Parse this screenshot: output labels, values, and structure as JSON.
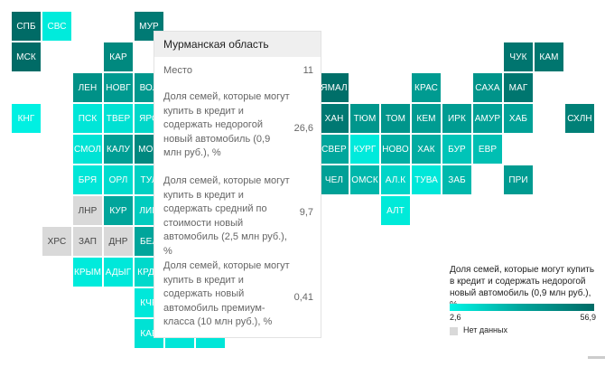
{
  "colors": {
    "scale": [
      "#00f5e6",
      "#00a39a",
      "#006b66"
    ],
    "no_data": "#d9d9d9"
  },
  "regions": [
    {
      "code": "СПБ",
      "value": null,
      "c": "#006b66"
    },
    {
      "code": "СВС",
      "value": null,
      "c": "#00ebdc"
    },
    {
      "code": "МУР",
      "value": 26.6,
      "c": "#007a74"
    },
    {
      "code": "МСК",
      "value": null,
      "c": "#006b66"
    },
    {
      "code": "КАР",
      "value": null,
      "c": "#00897f"
    },
    {
      "code": "ЧУК",
      "value": null,
      "c": "#00756f"
    },
    {
      "code": "КАМ",
      "value": null,
      "c": "#00766f"
    },
    {
      "code": "ЛЕН",
      "value": null,
      "c": "#009187"
    },
    {
      "code": "НОВГ",
      "value": null,
      "c": "#009a90"
    },
    {
      "code": "ВОЛ",
      "value": null,
      "c": "#00978d"
    },
    {
      "code": "ЯМАЛ",
      "value": null,
      "c": "#006f69"
    },
    {
      "code": "КРАС",
      "value": null,
      "c": "#009b91"
    },
    {
      "code": "САХА",
      "value": null,
      "c": "#00948a"
    },
    {
      "code": "МАГ",
      "value": null,
      "c": "#00766f"
    },
    {
      "code": "КНГ",
      "value": null,
      "c": "#00f0e2"
    },
    {
      "code": "ПСК",
      "value": null,
      "c": "#00e6d8"
    },
    {
      "code": "ТВЕР",
      "value": null,
      "c": "#00e1d3"
    },
    {
      "code": "ЯРО",
      "value": null,
      "c": "#00d7c9"
    },
    {
      "code": "ХАН",
      "value": null,
      "c": "#007872"
    },
    {
      "code": "ТЮМ",
      "value": null,
      "c": "#00968c"
    },
    {
      "code": "ТОМ",
      "value": null,
      "c": "#00958b"
    },
    {
      "code": "КЕМ",
      "value": null,
      "c": "#009c92"
    },
    {
      "code": "ИРК",
      "value": null,
      "c": "#009c92"
    },
    {
      "code": "АМУР",
      "value": null,
      "c": "#00a096"
    },
    {
      "code": "ХАБ",
      "value": null,
      "c": "#00a197"
    },
    {
      "code": "СХЛН",
      "value": null,
      "c": "#008077"
    },
    {
      "code": "СМОЛ",
      "value": null,
      "c": "#00e3d5"
    },
    {
      "code": "КАЛУ",
      "value": null,
      "c": "#009e94"
    },
    {
      "code": "МОС",
      "value": null,
      "c": "#00887f"
    },
    {
      "code": "СВЕР",
      "value": null,
      "c": "#00a69c"
    },
    {
      "code": "КУРГ",
      "value": null,
      "c": "#00eadc"
    },
    {
      "code": "НОВО",
      "value": null,
      "c": "#00aea3"
    },
    {
      "code": "ХАК",
      "value": null,
      "c": "#00aca1"
    },
    {
      "code": "БУР",
      "value": null,
      "c": "#00c4b8"
    },
    {
      "code": "ЕВР",
      "value": null,
      "c": "#00bfb3"
    },
    {
      "code": "БРЯ",
      "value": null,
      "c": "#00e6d8"
    },
    {
      "code": "ОРЛ",
      "value": null,
      "c": "#00dcce"
    },
    {
      "code": "ТУЛ",
      "value": null,
      "c": "#00d0c3"
    },
    {
      "code": "ЧЕЛ",
      "value": null,
      "c": "#00a096"
    },
    {
      "code": "ОМСК",
      "value": null,
      "c": "#00b7ab"
    },
    {
      "code": "АЛ.К",
      "value": null,
      "c": "#00d5c8"
    },
    {
      "code": "ТУВА",
      "value": null,
      "c": "#00e7d9"
    },
    {
      "code": "ЗАБ",
      "value": null,
      "c": "#00b9ad"
    },
    {
      "code": "ПРИ",
      "value": null,
      "c": "#009b91"
    },
    {
      "code": "ЛНР",
      "value": null,
      "c": "#d9d9d9",
      "nd": true
    },
    {
      "code": "КУР",
      "value": null,
      "c": "#00a59b"
    },
    {
      "code": "ЛИП",
      "value": null,
      "c": "#00ccbf"
    },
    {
      "code": "АЛТ",
      "value": null,
      "c": "#00ead9"
    },
    {
      "code": "ХРС",
      "value": null,
      "c": "#d9d9d9",
      "nd": true
    },
    {
      "code": "ЗАП",
      "value": null,
      "c": "#d9d9d9",
      "nd": true
    },
    {
      "code": "ДНР",
      "value": null,
      "c": "#d9d9d9",
      "nd": true
    },
    {
      "code": "БЕЛ",
      "value": null,
      "c": "#00a59b"
    },
    {
      "code": "КРЫМ",
      "value": null,
      "c": "#00ebdc"
    },
    {
      "code": "АДЫГ",
      "value": null,
      "c": "#00e8da"
    },
    {
      "code": "КРДР",
      "value": null,
      "c": "#00d9cb"
    },
    {
      "code": "КЧР",
      "value": null,
      "c": "#00e8da"
    },
    {
      "code": "КАБ",
      "value": null,
      "c": "#00e2d4"
    }
  ],
  "tooltip": {
    "region": "Мурманская область",
    "rows": [
      {
        "label": "Место",
        "value": "11"
      },
      {
        "label": "Доля семей, которые могут купить в кредит и содержать недорогой новый автомобиль (0,9 млн руб.), %",
        "value": "26,6"
      },
      {
        "label": "Доля семей, которые могут купить в кредит и содержать средний по стоимости новый автомобиль (2,5 млн руб.), %",
        "value": "9,7"
      },
      {
        "label": "Доля семей, которые могут купить в кредит и содержать новый автомобиль премиум-класса (10 млн руб.), %",
        "value": "0,41"
      }
    ]
  },
  "legend": {
    "title": "Доля семей, которые могут купить в кредит и содержать недорогой новый автомобиль (0,9 млн руб.), %",
    "min_label": "2,6",
    "max_label": "56,9",
    "no_data_label": "Нет данных"
  }
}
